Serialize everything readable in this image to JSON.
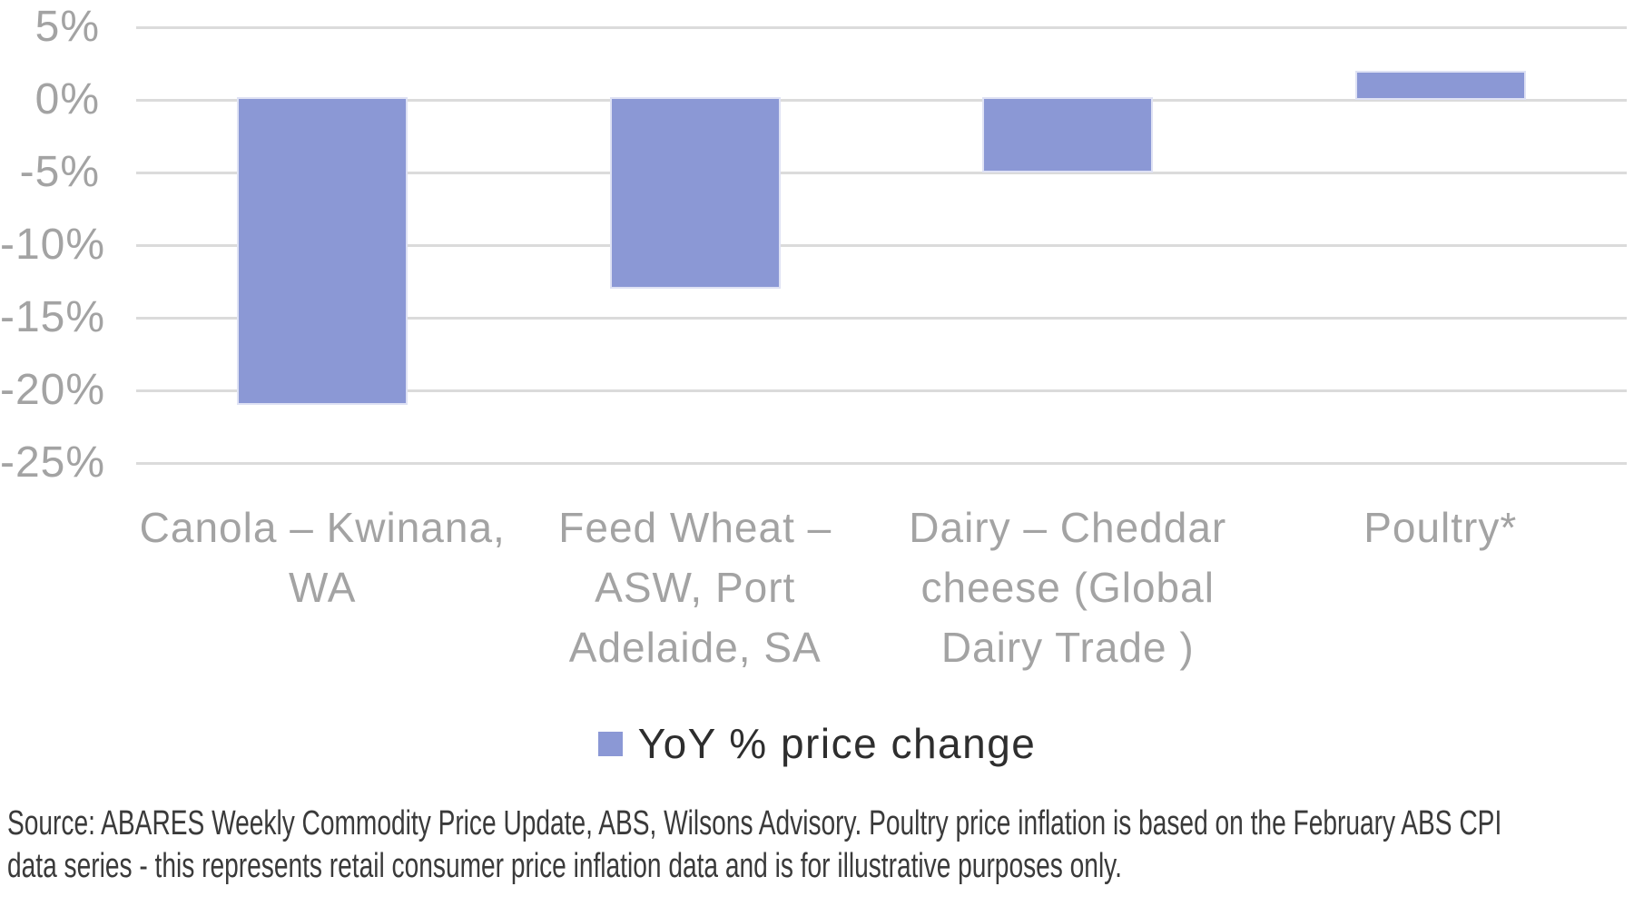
{
  "chart_data": {
    "type": "bar",
    "title": "",
    "categories": [
      "Canola – Kwinana, WA",
      "Feed Wheat – ASW, Port Adelaide, SA",
      "Dairy – Cheddar cheese (Global Dairy Trade )",
      "Poultry*"
    ],
    "category_label_lines": [
      [
        "Canola – Kwinana,",
        "WA"
      ],
      [
        "Feed Wheat –",
        "ASW, Port",
        "Adelaide, SA"
      ],
      [
        "Dairy – Cheddar",
        "cheese (Global",
        "Dairy Trade )"
      ],
      [
        "Poultry*"
      ]
    ],
    "series": [
      {
        "name": "YoY % price change",
        "values": [
          -21,
          -13,
          -5,
          2
        ]
      }
    ],
    "unit": "%",
    "ylim": [
      -25,
      5
    ],
    "ytick_step": 5,
    "ytick_labels": [
      "5%",
      "0%",
      "-5%",
      "-10%",
      "-15%",
      "-20%",
      "-25%"
    ],
    "grid": "horizontal",
    "legend_position": "bottom"
  },
  "legend": {
    "label": "YoY % price change"
  },
  "footnote": {
    "line1": "Source: ABARES Weekly Commodity Price Update, ABS, Wilsons Advisory. Poultry price inflation is based on the February ABS CPI",
    "line2": "data series - this represents retail consumer price inflation data and is for illustrative purposes only."
  },
  "colors": {
    "bar": "#8b98d5",
    "bar_border": "#dfe2f4",
    "gridline": "#dbdbdb",
    "axis_text": "#a3a3a3",
    "legend_text": "#2e2e2e",
    "footnote_text": "#3a3a3a"
  }
}
